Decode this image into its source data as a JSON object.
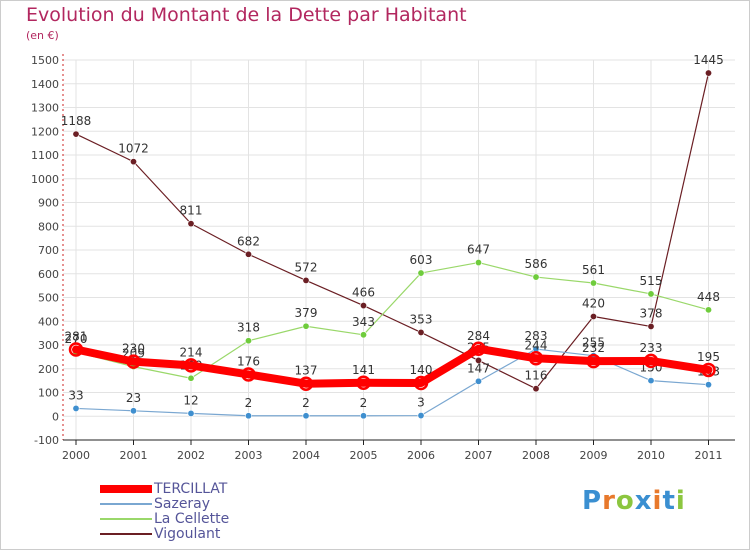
{
  "title": "Evolution du Montant de la Dette par Habitant",
  "subtitle": "(en €)",
  "logo": {
    "text": "Proxiti",
    "letters": [
      {
        "ch": "P",
        "color": "#3a8fd1"
      },
      {
        "ch": "r",
        "color": "#e8792c"
      },
      {
        "ch": "o",
        "color": "#8cc63f"
      },
      {
        "ch": "x",
        "color": "#3a8fd1"
      },
      {
        "ch": "i",
        "color": "#e8792c"
      },
      {
        "ch": "t",
        "color": "#3a8fd1"
      },
      {
        "ch": "i",
        "color": "#8cc63f"
      }
    ]
  },
  "chart_data": {
    "type": "line",
    "categories": [
      "2000",
      "2001",
      "2002",
      "2003",
      "2004",
      "2005",
      "2006",
      "2007",
      "2008",
      "2009",
      "2010",
      "2011"
    ],
    "ylim": [
      -100,
      1500
    ],
    "yticks": [
      -100,
      0,
      100,
      200,
      300,
      400,
      500,
      600,
      700,
      800,
      900,
      1000,
      1100,
      1200,
      1300,
      1400,
      1500
    ],
    "grid": true,
    "legend_position": "bottom-left",
    "series": [
      {
        "name": "Vigoulant",
        "color": "#6b1f24",
        "marker": "#6b1f24",
        "values": [
          1188,
          1072,
          811,
          682,
          572,
          466,
          353,
          235,
          116,
          420,
          378,
          1445
        ]
      },
      {
        "name": "La Cellette",
        "color": "#9ad86a",
        "marker": "#6fcc3c",
        "values": [
          270,
          209,
          160,
          318,
          379,
          343,
          603,
          647,
          586,
          561,
          515,
          448
        ]
      },
      {
        "name": "Sazeray",
        "color": "#7aa7d1",
        "marker": "#3f8fcf",
        "values": [
          33,
          23,
          12,
          2,
          2,
          2,
          3,
          147,
          283,
          255,
          150,
          133
        ]
      },
      {
        "name": "TERCILLAT",
        "color": "#ff0000",
        "marker": "#ff0000",
        "values": [
          281,
          230,
          214,
          176,
          137,
          141,
          140,
          284,
          244,
          232,
          233,
          195
        ]
      }
    ],
    "legend": [
      "TERCILLAT",
      "Sazeray",
      "La Cellette",
      "Vigoulant"
    ]
  }
}
